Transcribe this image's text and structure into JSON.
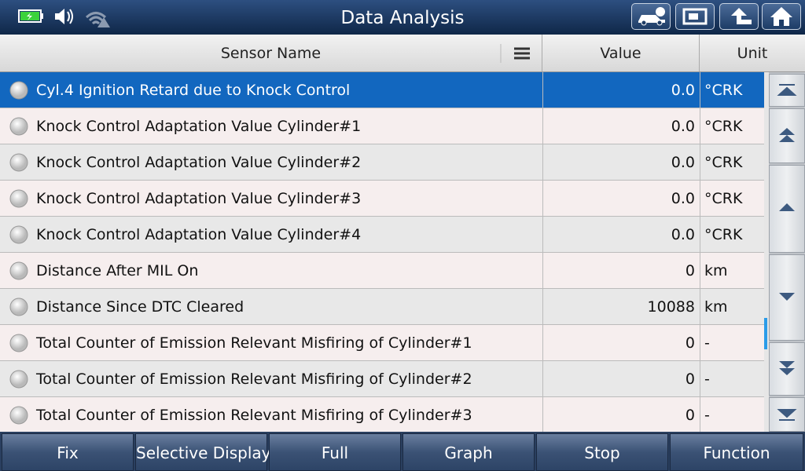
{
  "header": {
    "title": "Data Analysis"
  },
  "table": {
    "columns": [
      "Sensor Name",
      "Value",
      "Unit"
    ],
    "rows": [
      [
        "Cyl.4 Ignition Retard due to Knock Control",
        "0.0",
        "°CRK"
      ],
      [
        "Knock Control Adaptation Value Cylinder#1",
        "0.0",
        "°CRK"
      ],
      [
        "Knock Control Adaptation Value Cylinder#2",
        "0.0",
        "°CRK"
      ],
      [
        "Knock Control Adaptation Value Cylinder#3",
        "0.0",
        "°CRK"
      ],
      [
        "Knock Control Adaptation Value Cylinder#4",
        "0.0",
        "°CRK"
      ],
      [
        "Distance After MIL On",
        "0",
        "km"
      ],
      [
        "Distance Since DTC Cleared",
        "10088",
        "km"
      ],
      [
        "Total Counter of Emission Relevant Misfiring of Cylinder#1",
        "0",
        "-"
      ],
      [
        "Total Counter of Emission Relevant Misfiring of Cylinder#2",
        "0",
        "-"
      ],
      [
        "Total Counter of Emission Relevant Misfiring of Cylinder#3",
        "0",
        "-"
      ]
    ]
  },
  "toolbar": {
    "buttons": [
      "Fix",
      "Selective Display",
      "Full",
      "Graph",
      "Stop",
      "Function"
    ]
  }
}
